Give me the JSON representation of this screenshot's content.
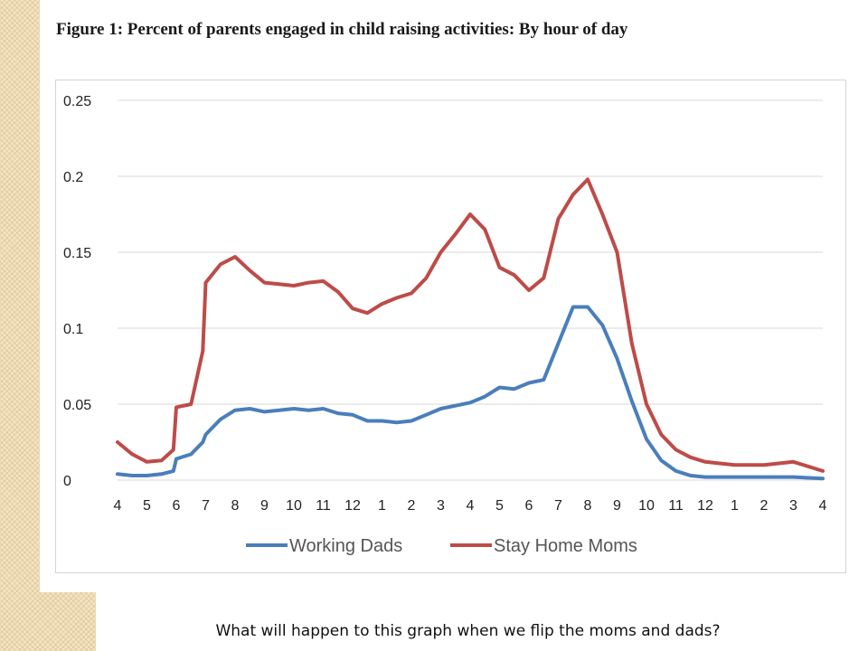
{
  "slide": {
    "figure_title": "Figure 1: Percent of parents engaged in child raising activities: By hour of day",
    "question": "What will happen to this graph when we flip the moms and dads?"
  },
  "colors": {
    "working_dads": "#4a7ebb",
    "stay_home_moms": "#be4b48",
    "gridline": "#d9d9d9",
    "background_pattern": "#f3e3c2"
  },
  "chart_data": {
    "type": "line",
    "title": "Figure 1: Percent of parents engaged in child raising activities: By hour of day",
    "xlabel": "",
    "ylabel": "",
    "ylim": [
      0,
      0.25
    ],
    "grid": true,
    "legend_position": "bottom",
    "y_ticks": [
      "0",
      "0.05",
      "0.1",
      "0.15",
      "0.2",
      "0.25"
    ],
    "x_tick_labels": [
      "4",
      "5",
      "6",
      "7",
      "8",
      "9",
      "10",
      "11",
      "12",
      "1",
      "2",
      "3",
      "4",
      "5",
      "6",
      "7",
      "8",
      "9",
      "10",
      "11",
      "12",
      "1",
      "2",
      "3",
      "4"
    ],
    "x_hours": [
      4,
      4.5,
      5,
      5.5,
      5.9,
      6,
      6.5,
      6.9,
      7,
      7.5,
      8,
      8.5,
      9,
      9.5,
      10,
      10.5,
      11,
      11.5,
      12,
      12.5,
      13,
      13.5,
      14,
      14.5,
      15,
      15.5,
      16,
      16.5,
      17,
      17.5,
      18,
      18.5,
      19,
      19.5,
      20,
      20.5,
      21,
      21.5,
      22,
      22.5,
      23,
      23.5,
      24,
      25,
      26,
      27,
      28
    ],
    "series": [
      {
        "name": "Working Dads",
        "color": "#4a7ebb",
        "values": [
          0.004,
          0.003,
          0.003,
          0.004,
          0.006,
          0.014,
          0.017,
          0.025,
          0.03,
          0.04,
          0.046,
          0.047,
          0.045,
          0.046,
          0.047,
          0.046,
          0.047,
          0.044,
          0.043,
          0.039,
          0.039,
          0.038,
          0.039,
          0.043,
          0.047,
          0.049,
          0.051,
          0.055,
          0.061,
          0.06,
          0.064,
          0.066,
          0.09,
          0.114,
          0.114,
          0.102,
          0.08,
          0.052,
          0.027,
          0.013,
          0.006,
          0.003,
          0.002,
          0.002,
          0.002,
          0.002,
          0.001
        ]
      },
      {
        "name": "Stay Home Moms",
        "color": "#be4b48",
        "values": [
          0.025,
          0.017,
          0.012,
          0.013,
          0.02,
          0.048,
          0.05,
          0.085,
          0.13,
          0.142,
          0.147,
          0.138,
          0.13,
          0.129,
          0.128,
          0.13,
          0.131,
          0.124,
          0.113,
          0.11,
          0.116,
          0.12,
          0.123,
          0.133,
          0.15,
          0.162,
          0.175,
          0.165,
          0.14,
          0.135,
          0.125,
          0.133,
          0.172,
          0.188,
          0.198,
          0.175,
          0.15,
          0.09,
          0.05,
          0.03,
          0.02,
          0.015,
          0.012,
          0.01,
          0.01,
          0.012,
          0.006
        ]
      }
    ]
  }
}
